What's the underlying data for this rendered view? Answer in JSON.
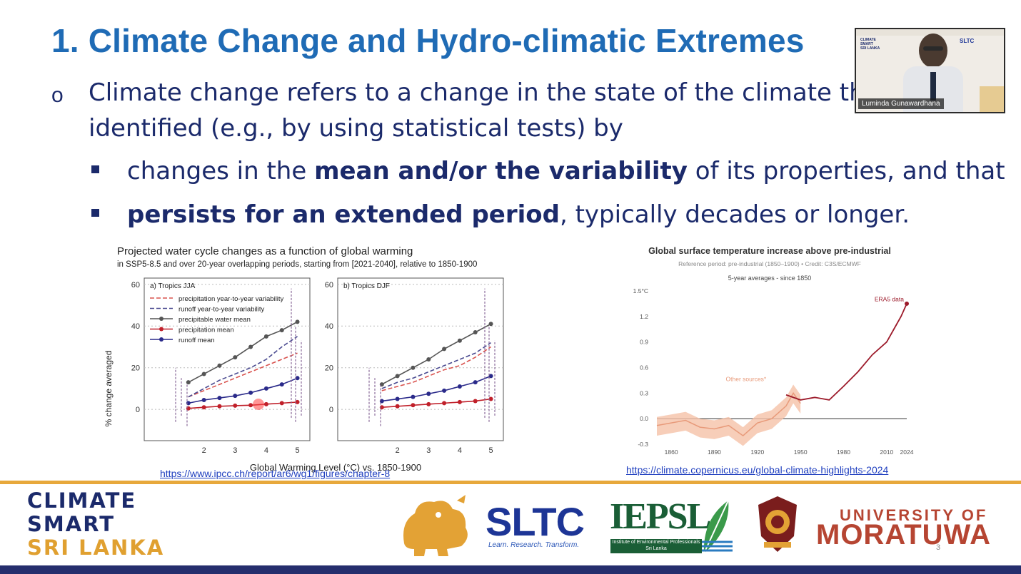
{
  "slide": {
    "title": "1. Climate Change and Hydro-climatic Extremes",
    "bullet1_line1": "Climate change refers to a change in the state of the climate that can be",
    "bullet1_line2": "identified (e.g., by using statistical tests) by",
    "sub1_pre": "changes in the ",
    "sub1_bold": "mean and/or the variability",
    "sub1_post": " of its properties, and that",
    "sub2_bold": "persists for an extended period",
    "sub2_post": ", typically decades or longer.",
    "page_number": "3"
  },
  "video": {
    "presenter_name": "Luminda Gunawardhana",
    "banner_text": "SLTC"
  },
  "links": {
    "ipcc": "https://www.ipcc.ch/report/ar6/wg1/figures/chapter-8",
    "copernicus": "https://climate.copernicus.eu/global-climate-highlights-2024"
  },
  "footer": {
    "logo_line1": "CLIMATE",
    "logo_line2": "SMART",
    "logo_line3": "SRI LANKA",
    "sltc": "SLTC",
    "sltc_tagline": "Learn. Research. Transform.",
    "iepsl": "IEPSL",
    "iepsl_tagline1": "Institute of Environmental Professionals",
    "iepsl_tagline2": "Sri Lanka",
    "uom1": "UNIVERSITY OF",
    "uom2": "MORATUWA"
  },
  "chart_data": [
    {
      "type": "line",
      "title": "Projected water cycle changes as a function of global warming",
      "subtitle": "in SSP5-8.5 and over 20-year overlapping periods, starting from [2021-2040], relative to 1850-1900",
      "xlabel": "Global Warming Level (°C) vs. 1850-1900",
      "ylabel": "% change averaged",
      "panels": [
        "a) Tropics JJA",
        "b) Tropics DJF"
      ],
      "x": [
        1.5,
        2,
        2.5,
        3,
        3.5,
        4,
        4.5,
        5
      ],
      "xticks": [
        "2",
        "3",
        "4",
        "5"
      ],
      "yticks": [
        "0",
        "20",
        "40",
        "60"
      ],
      "ylim": [
        -15,
        63
      ],
      "series": [
        {
          "name": "precipitation year-to-year variability",
          "color": "#d9534f",
          "dash": true,
          "a": [
            6,
            9,
            12,
            15,
            18,
            21,
            24,
            27
          ],
          "b": [
            9,
            11,
            13,
            16,
            19,
            21,
            25,
            30
          ]
        },
        {
          "name": "runoff year-to-year variability",
          "color": "#4a4a90",
          "dash": true,
          "a": [
            6,
            10,
            14,
            17,
            20,
            24,
            30,
            35
          ],
          "b": [
            10,
            13,
            15,
            18,
            21,
            24,
            27,
            32
          ]
        },
        {
          "name": "precipitable water mean",
          "color": "#555555",
          "dash": false,
          "a": [
            13,
            17,
            21,
            25,
            30,
            35,
            38,
            42
          ],
          "b": [
            12,
            16,
            20,
            24,
            29,
            33,
            37,
            41
          ]
        },
        {
          "name": "precipitation mean",
          "color": "#c0202a",
          "dash": false,
          "a": [
            0.5,
            1,
            1.5,
            1.8,
            2,
            2.5,
            3,
            3.5
          ],
          "b": [
            1,
            1.5,
            2,
            2.5,
            3,
            3.5,
            4,
            5
          ]
        },
        {
          "name": "runoff mean",
          "color": "#2a2a8a",
          "dash": false,
          "a": [
            3,
            4.5,
            5.5,
            6.5,
            8,
            10,
            12,
            15
          ],
          "b": [
            4,
            5,
            6,
            7.5,
            9,
            11,
            13,
            16
          ]
        }
      ]
    },
    {
      "type": "line",
      "title": "Global surface temperature increase above pre-industrial",
      "subtitle": "Reference period: pre-industrial (1850–1900) • Credit: C3S/ECMWF",
      "subtitle2": "5-year averages - since 1850",
      "annotations": [
        "ERA5 data",
        "Other sources*"
      ],
      "yticks": [
        "1.5°C",
        "1.2",
        "0.9",
        "0.6",
        "0.3",
        "0.0",
        "-0.3"
      ],
      "xticks": [
        "1860",
        "1890",
        "1920",
        "1950",
        "1980",
        "2010",
        "2024"
      ],
      "ylim": [
        -0.3,
        1.5
      ],
      "xlim": [
        1850,
        2024
      ],
      "series": [
        {
          "name": "Other sources*",
          "x": [
            1850,
            1860,
            1870,
            1880,
            1890,
            1900,
            1910,
            1920,
            1930,
            1940,
            1945,
            1950
          ],
          "y": [
            -0.08,
            -0.05,
            -0.02,
            -0.1,
            -0.12,
            -0.08,
            -0.2,
            -0.05,
            0.0,
            0.15,
            0.3,
            0.18
          ]
        },
        {
          "name": "ERA5 data",
          "x": [
            1940,
            1950,
            1960,
            1970,
            1980,
            1990,
            2000,
            2010,
            2015,
            2020,
            2024
          ],
          "y": [
            0.28,
            0.22,
            0.25,
            0.22,
            0.38,
            0.55,
            0.75,
            0.9,
            1.05,
            1.2,
            1.35
          ]
        }
      ]
    }
  ]
}
